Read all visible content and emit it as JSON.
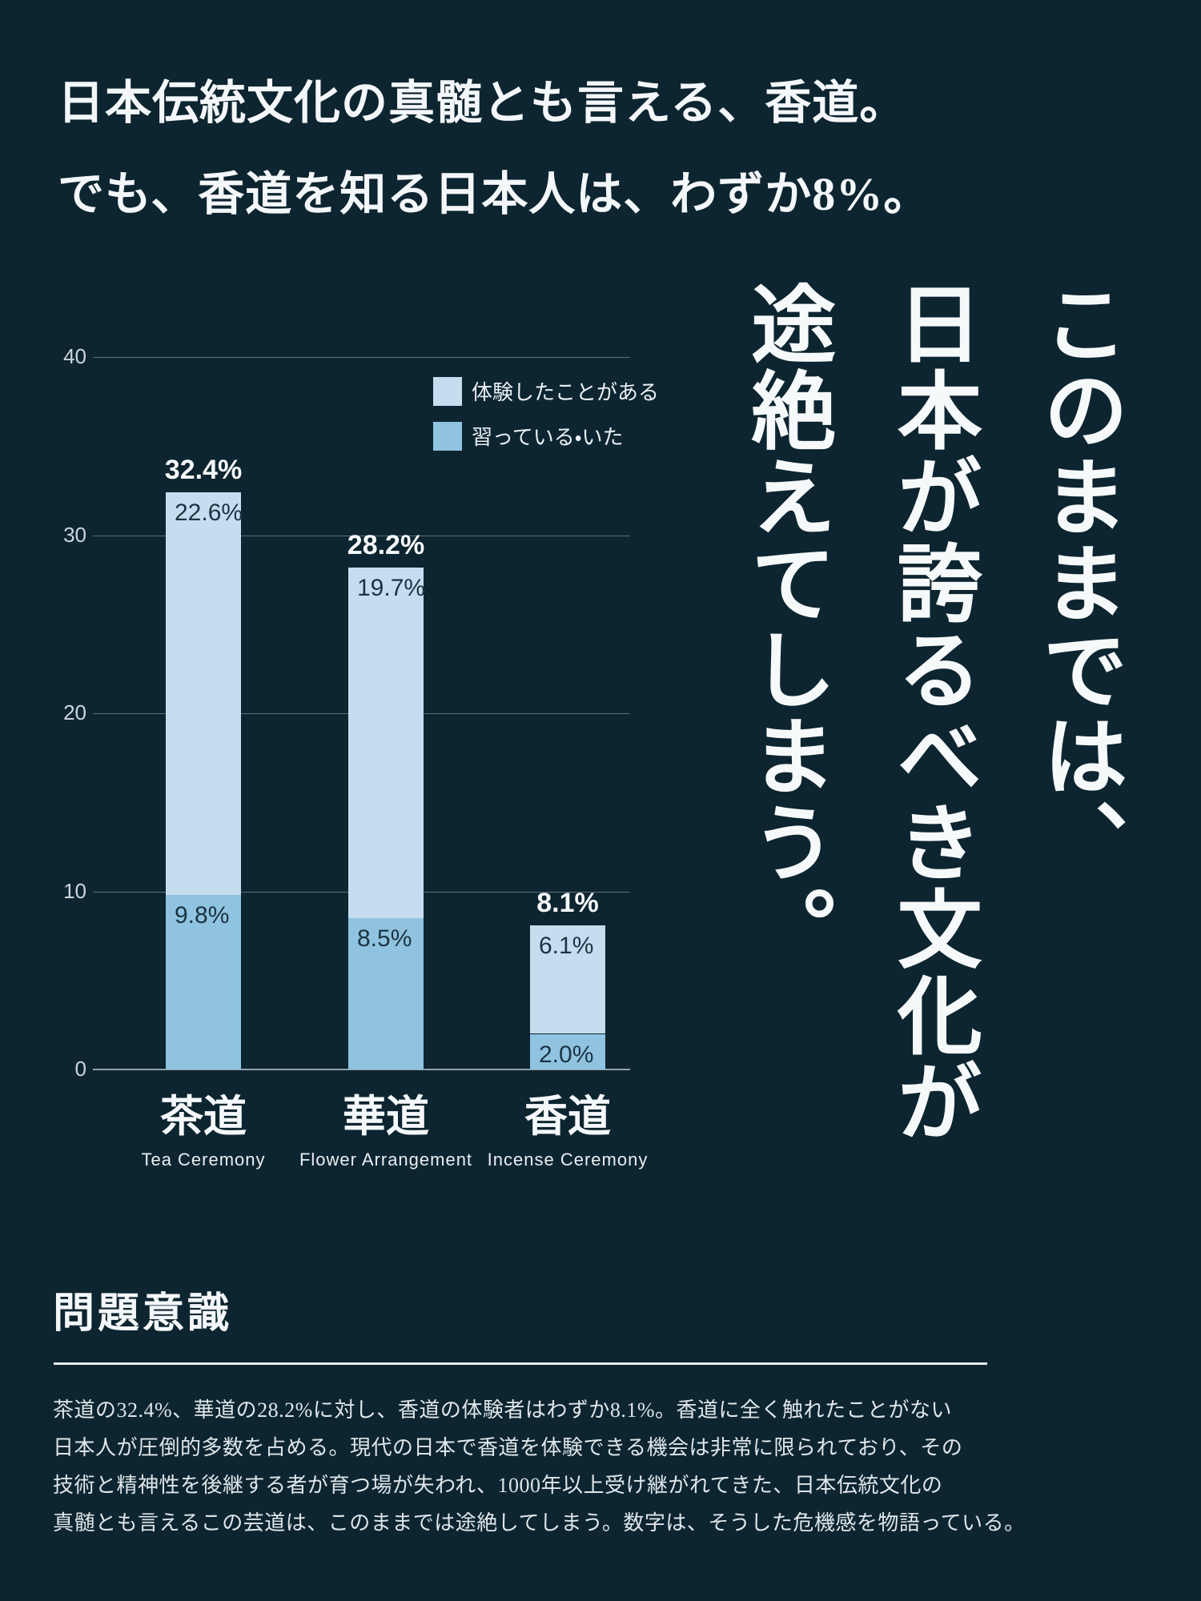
{
  "page": {
    "background_color": "#0d2530",
    "text_color": "#f4f7f9"
  },
  "top_headline": {
    "line1": "日本伝統文化の真髄とも言える、香道。",
    "line2": "でも、香道を知る日本人は、わずか8%。"
  },
  "vertical_headline": {
    "columns": [
      "このままでは、",
      "日本が誇るべき文化が",
      "途絶えてしまう。"
    ]
  },
  "chart_data": {
    "type": "bar",
    "stacked": true,
    "categories": [
      "茶道",
      "華道",
      "香道"
    ],
    "category_sublabels": [
      "Tea Ceremony",
      "Flower Arrangement",
      "Incense Ceremony"
    ],
    "series": [
      {
        "name": "体験したことがある",
        "color": "#c5ddef",
        "values": [
          22.6,
          19.7,
          6.1
        ]
      },
      {
        "name": "習っている・いた",
        "color": "#8fc3e0",
        "values": [
          9.8,
          8.5,
          2.0
        ]
      }
    ],
    "totals": [
      32.4,
      28.2,
      8.1
    ],
    "total_labels": [
      "32.4%",
      "28.2%",
      "8.1%"
    ],
    "segment_labels": [
      [
        "22.6%",
        "19.7%",
        "6.1%"
      ],
      [
        "9.8%",
        "8.5%",
        "2.0%"
      ]
    ],
    "y_ticks": [
      40,
      30,
      20,
      10,
      0
    ],
    "ylim": [
      0,
      40
    ],
    "grid": true,
    "legend_position": "top-right",
    "colors": {
      "gridline": "#5c6f7c",
      "axis_line": "#93a2ac",
      "tick_label": "#ccd6dc",
      "inner_label": "#1b3442",
      "total_label": "#f5f8fa"
    }
  },
  "problem_section": {
    "heading": "問題意識",
    "paragraph_lines": [
      "茶道の32.4%、華道の28.2%に対し、香道の体験者はわずか8.1%。香道に全く触れたことがない",
      "日本人が圧倒的多数を占める。現代の日本で香道を体験できる機会は非常に限られており、その",
      "技術と精神性を後継する者が育つ場が失われ、1000年以上受け継がれてきた、日本伝統文化の",
      "真髄とも言えるこの芸道は、このままでは途絶してしまう。数字は、そうした危機感を物語っている。"
    ]
  }
}
